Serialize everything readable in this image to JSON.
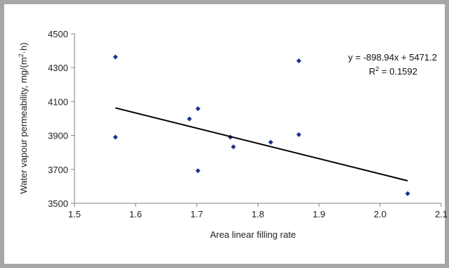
{
  "chart_data": {
    "type": "scatter",
    "xlabel": "Area linear filling rate",
    "ylabel": "Water vapour permeability, mg/(m",
    "ylabel_sup": "2",
    "ylabel_tail": "·h)",
    "xlim": [
      1.5,
      2.1
    ],
    "ylim": [
      3500,
      4500
    ],
    "xticks": [
      1.5,
      1.6,
      1.7,
      1.8,
      1.9,
      2.0,
      2.1
    ],
    "xtick_labels": [
      "1.5",
      "1.6",
      "1.7",
      "1.8",
      "1.9",
      "2.0",
      "2.1"
    ],
    "yticks": [
      3500,
      3700,
      3900,
      4100,
      4300,
      4500
    ],
    "ytick_labels": [
      "3500",
      "3700",
      "3900",
      "4100",
      "4300",
      "4500"
    ],
    "grid": false,
    "points": [
      {
        "x": 1.567,
        "y": 4363
      },
      {
        "x": 1.567,
        "y": 3890
      },
      {
        "x": 1.688,
        "y": 3998
      },
      {
        "x": 1.702,
        "y": 4058
      },
      {
        "x": 1.702,
        "y": 3692
      },
      {
        "x": 1.755,
        "y": 3890
      },
      {
        "x": 1.76,
        "y": 3833
      },
      {
        "x": 1.821,
        "y": 3860
      },
      {
        "x": 1.867,
        "y": 4340
      },
      {
        "x": 1.867,
        "y": 3905
      },
      {
        "x": 2.045,
        "y": 3557
      }
    ],
    "trendline": {
      "slope": -898.94,
      "intercept": 5471.2,
      "x_start": 1.567,
      "x_end": 2.045,
      "equation": "y = -898.94x + 5471.2",
      "r2_prefix": "R",
      "r2_sup": "2",
      "r2_value": " = 0.1592"
    },
    "colors": {
      "marker": "#1f2f8c",
      "trendline": "#000000",
      "axis": "#7f7f7f",
      "frame": "#a6a6a6"
    }
  }
}
